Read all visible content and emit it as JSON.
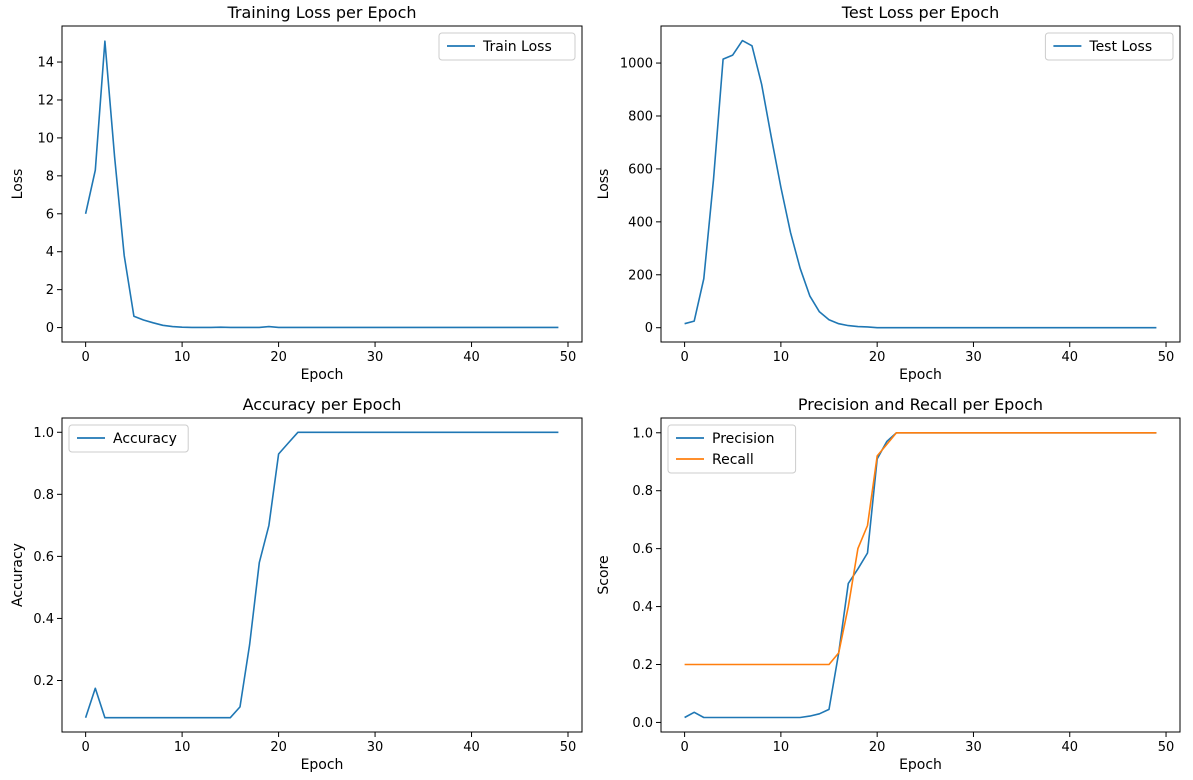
{
  "chart_data": [
    {
      "type": "line",
      "title": "Training Loss per Epoch",
      "xlabel": "Epoch",
      "ylabel": "Loss",
      "xlim": [
        -2.45,
        51.45
      ],
      "ylim": [
        -0.76,
        15.9
      ],
      "xticks": [
        0,
        10,
        20,
        30,
        40,
        50
      ],
      "yticks": [
        0,
        2,
        4,
        6,
        8,
        10,
        12,
        14
      ],
      "ytick_labels": [
        "0",
        "2",
        "4",
        "6",
        "8",
        "10",
        "12",
        "14"
      ],
      "legend_position": "upper right",
      "series": [
        {
          "name": "Train Loss",
          "color": "#1f77b4",
          "x": [
            0,
            1,
            2,
            3,
            4,
            5,
            6,
            7,
            8,
            9,
            10,
            11,
            12,
            13,
            14,
            15,
            16,
            17,
            18,
            19,
            20,
            21,
            22,
            23,
            24,
            25,
            26,
            27,
            28,
            29,
            30,
            31,
            32,
            33,
            34,
            35,
            36,
            37,
            38,
            39,
            40,
            41,
            42,
            43,
            44,
            45,
            46,
            47,
            48,
            49
          ],
          "y": [
            6.0,
            8.3,
            15.1,
            9.0,
            3.8,
            0.6,
            0.4,
            0.25,
            0.12,
            0.05,
            0.02,
            0.01,
            0.01,
            0.01,
            0.02,
            0.01,
            0.01,
            0.01,
            0.01,
            0.05,
            0.01,
            0.01,
            0.01,
            0.01,
            0.01,
            0.01,
            0.01,
            0.01,
            0.01,
            0.01,
            0.01,
            0.01,
            0.01,
            0.01,
            0.01,
            0.01,
            0.01,
            0.01,
            0.01,
            0.01,
            0.01,
            0.01,
            0.01,
            0.01,
            0.01,
            0.01,
            0.01,
            0.01,
            0.01,
            0.01
          ]
        }
      ]
    },
    {
      "type": "line",
      "title": "Test Loss per Epoch",
      "xlabel": "Epoch",
      "ylabel": "Loss",
      "xlim": [
        -2.45,
        51.45
      ],
      "ylim": [
        -54,
        1140
      ],
      "xticks": [
        0,
        10,
        20,
        30,
        40,
        50
      ],
      "yticks": [
        0,
        200,
        400,
        600,
        800,
        1000
      ],
      "ytick_labels": [
        "0",
        "200",
        "400",
        "600",
        "800",
        "1000"
      ],
      "legend_position": "upper right",
      "series": [
        {
          "name": "Test Loss",
          "color": "#1f77b4",
          "x": [
            0,
            1,
            2,
            3,
            4,
            5,
            6,
            7,
            8,
            9,
            10,
            11,
            12,
            13,
            14,
            15,
            16,
            17,
            18,
            19,
            20,
            21,
            22,
            23,
            24,
            25,
            26,
            27,
            28,
            29,
            30,
            31,
            32,
            33,
            34,
            35,
            36,
            37,
            38,
            39,
            40,
            41,
            42,
            43,
            44,
            45,
            46,
            47,
            48,
            49
          ],
          "y": [
            15,
            25,
            185,
            560,
            1015,
            1030,
            1085,
            1065,
            920,
            720,
            530,
            360,
            225,
            120,
            60,
            30,
            15,
            8,
            4,
            3,
            0,
            0,
            0,
            0,
            0,
            0,
            0,
            0,
            0,
            0,
            0,
            0,
            0,
            0,
            0,
            0,
            0,
            0,
            0,
            0,
            0,
            0,
            0,
            0,
            0,
            0,
            0,
            0,
            0,
            0
          ]
        }
      ]
    },
    {
      "type": "line",
      "title": "Accuracy per Epoch",
      "xlabel": "Epoch",
      "ylabel": "Accuracy",
      "xlim": [
        -2.45,
        51.45
      ],
      "ylim": [
        0.034,
        1.046
      ],
      "xticks": [
        0,
        10,
        20,
        30,
        40,
        50
      ],
      "yticks": [
        0.2,
        0.4,
        0.6,
        0.8,
        1.0
      ],
      "ytick_labels": [
        "0.2",
        "0.4",
        "0.6",
        "0.8",
        "1.0"
      ],
      "legend_position": "upper left",
      "series": [
        {
          "name": "Accuracy",
          "color": "#1f77b4",
          "x": [
            0,
            1,
            2,
            3,
            4,
            5,
            6,
            7,
            8,
            9,
            10,
            11,
            12,
            13,
            14,
            15,
            16,
            17,
            18,
            19,
            20,
            21,
            22,
            23,
            24,
            25,
            26,
            27,
            28,
            29,
            30,
            31,
            32,
            33,
            34,
            35,
            36,
            37,
            38,
            39,
            40,
            41,
            42,
            43,
            44,
            45,
            46,
            47,
            48,
            49
          ],
          "y": [
            0.08,
            0.175,
            0.08,
            0.08,
            0.08,
            0.08,
            0.08,
            0.08,
            0.08,
            0.08,
            0.08,
            0.08,
            0.08,
            0.08,
            0.08,
            0.08,
            0.115,
            0.315,
            0.58,
            0.7,
            0.93,
            0.965,
            1.0,
            1.0,
            1.0,
            1.0,
            1.0,
            1.0,
            1.0,
            1.0,
            1.0,
            1.0,
            1.0,
            1.0,
            1.0,
            1.0,
            1.0,
            1.0,
            1.0,
            1.0,
            1.0,
            1.0,
            1.0,
            1.0,
            1.0,
            1.0,
            1.0,
            1.0,
            1.0,
            1.0
          ]
        }
      ]
    },
    {
      "type": "line",
      "title": "Precision and Recall per Epoch",
      "xlabel": "Epoch",
      "ylabel": "Score",
      "xlim": [
        -2.45,
        51.45
      ],
      "ylim": [
        -0.033,
        1.051
      ],
      "xticks": [
        0,
        10,
        20,
        30,
        40,
        50
      ],
      "yticks": [
        0.0,
        0.2,
        0.4,
        0.6,
        0.8,
        1.0
      ],
      "ytick_labels": [
        "0.0",
        "0.2",
        "0.4",
        "0.6",
        "0.8",
        "1.0"
      ],
      "legend_position": "upper left",
      "series": [
        {
          "name": "Precision",
          "color": "#1f77b4",
          "x": [
            0,
            1,
            2,
            3,
            4,
            5,
            6,
            7,
            8,
            9,
            10,
            11,
            12,
            13,
            14,
            15,
            16,
            17,
            18,
            19,
            20,
            21,
            22,
            23,
            24,
            25,
            26,
            27,
            28,
            29,
            30,
            31,
            32,
            33,
            34,
            35,
            36,
            37,
            38,
            39,
            40,
            41,
            42,
            43,
            44,
            45,
            46,
            47,
            48,
            49
          ],
          "y": [
            0.017,
            0.035,
            0.017,
            0.017,
            0.017,
            0.017,
            0.017,
            0.017,
            0.017,
            0.017,
            0.017,
            0.017,
            0.017,
            0.022,
            0.03,
            0.045,
            0.24,
            0.48,
            0.53,
            0.585,
            0.91,
            0.97,
            1.0,
            1.0,
            1.0,
            1.0,
            1.0,
            1.0,
            1.0,
            1.0,
            1.0,
            1.0,
            1.0,
            1.0,
            1.0,
            1.0,
            1.0,
            1.0,
            1.0,
            1.0,
            1.0,
            1.0,
            1.0,
            1.0,
            1.0,
            1.0,
            1.0,
            1.0,
            1.0,
            1.0
          ]
        },
        {
          "name": "Recall",
          "color": "#ff7f0e",
          "x": [
            0,
            1,
            2,
            3,
            4,
            5,
            6,
            7,
            8,
            9,
            10,
            11,
            12,
            13,
            14,
            15,
            16,
            17,
            18,
            19,
            20,
            21,
            22,
            23,
            24,
            25,
            26,
            27,
            28,
            29,
            30,
            31,
            32,
            33,
            34,
            35,
            36,
            37,
            38,
            39,
            40,
            41,
            42,
            43,
            44,
            45,
            46,
            47,
            48,
            49
          ],
          "y": [
            0.2,
            0.2,
            0.2,
            0.2,
            0.2,
            0.2,
            0.2,
            0.2,
            0.2,
            0.2,
            0.2,
            0.2,
            0.2,
            0.2,
            0.2,
            0.2,
            0.24,
            0.4,
            0.6,
            0.68,
            0.92,
            0.96,
            1.0,
            1.0,
            1.0,
            1.0,
            1.0,
            1.0,
            1.0,
            1.0,
            1.0,
            1.0,
            1.0,
            1.0,
            1.0,
            1.0,
            1.0,
            1.0,
            1.0,
            1.0,
            1.0,
            1.0,
            1.0,
            1.0,
            1.0,
            1.0,
            1.0,
            1.0,
            1.0,
            1.0
          ]
        }
      ]
    }
  ]
}
